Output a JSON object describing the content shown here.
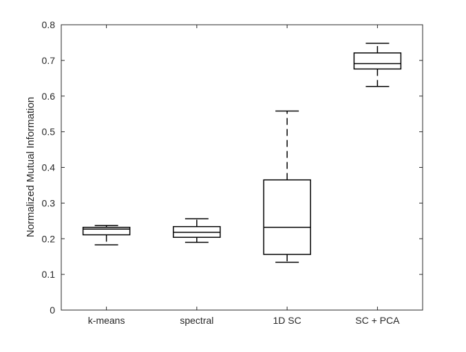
{
  "chart_data": {
    "type": "box",
    "title": "",
    "xlabel": "",
    "ylabel": "Normalized Mutual Information",
    "ylim": [
      0,
      0.8
    ],
    "yticks": [
      "0",
      "0.1",
      "0.2",
      "0.3",
      "0.4",
      "0.5",
      "0.6",
      "0.7",
      "0.8"
    ],
    "grid": false,
    "legend": "none",
    "categories": [
      "k-means",
      "spectral",
      "1D SC",
      "SC + PCA"
    ],
    "boxes": [
      {
        "category": "k-means",
        "whisker_low": 0.183,
        "q1": 0.211,
        "median": 0.227,
        "q3": 0.232,
        "whisker_high": 0.237
      },
      {
        "category": "spectral",
        "whisker_low": 0.19,
        "q1": 0.204,
        "median": 0.218,
        "q3": 0.234,
        "whisker_high": 0.256
      },
      {
        "category": "1D SC",
        "whisker_low": 0.134,
        "q1": 0.156,
        "median": 0.232,
        "q3": 0.365,
        "whisker_high": 0.558
      },
      {
        "category": "SC + PCA",
        "whisker_low": 0.627,
        "q1": 0.676,
        "median": 0.691,
        "q3": 0.721,
        "whisker_high": 0.748
      }
    ],
    "colors": {
      "box": "#000000",
      "axis": "#262626"
    }
  }
}
